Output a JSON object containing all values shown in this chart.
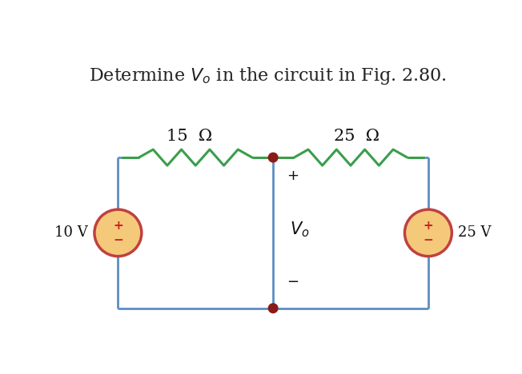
{
  "title": "Determine $V_o$ in the circuit in Fig. 2.80.",
  "title_fontsize": 16,
  "bg_color": "#ffffff",
  "wire_color": "#5b8ec4",
  "resistor_color": "#3a9e4a",
  "dot_color": "#8b1a1a",
  "source_fill": "#f5c97a",
  "source_edge": "#c04040",
  "source_lw": 2.5,
  "wire_lw": 2.0,
  "res_lw": 2.2,
  "label_15": "15  Ω",
  "label_25_top": "25  Ω",
  "label_Vo": "$V_o$",
  "label_10V": "10 V",
  "label_25V": "25 V"
}
